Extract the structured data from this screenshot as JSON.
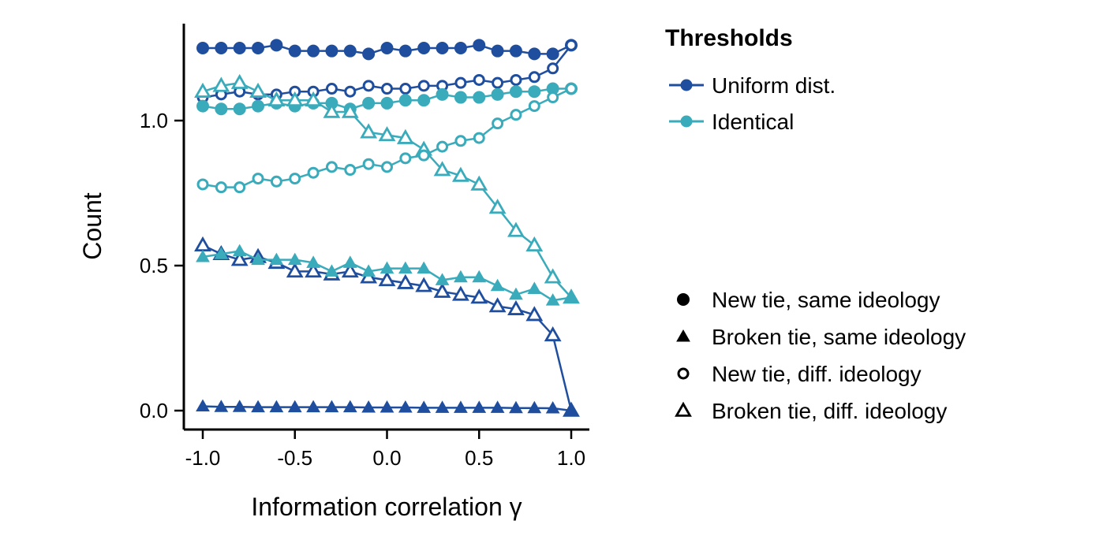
{
  "chart_data": {
    "type": "line",
    "xlabel": "Information correlation γ",
    "ylabel": "Count",
    "xlim": [
      -1.1,
      1.1
    ],
    "ylim": [
      -0.06,
      1.32
    ],
    "xticks": [
      -1.0,
      -0.5,
      0.0,
      0.5,
      1.0
    ],
    "xtick_labels": [
      "-1.0",
      "-0.5",
      "0.0",
      "0.5",
      "1.0"
    ],
    "yticks": [
      0.0,
      0.5,
      1.0
    ],
    "ytick_labels": [
      "0.0",
      "0.5",
      "1.0"
    ],
    "grid": false,
    "x": [
      -1.0,
      -0.9,
      -0.8,
      -0.7,
      -0.6,
      -0.5,
      -0.4,
      -0.3,
      -0.2,
      -0.1,
      0.0,
      0.1,
      0.2,
      0.3,
      0.4,
      0.5,
      0.6,
      0.7,
      0.8,
      0.9,
      1.0
    ],
    "color_legend": {
      "title": "Thresholds",
      "placement": "top-right",
      "entries": [
        {
          "label": "Uniform dist.",
          "color": "#1f4e9e"
        },
        {
          "label": "Identical",
          "color": "#3aabbb"
        }
      ]
    },
    "shape_legend": {
      "placement": "right",
      "entries": [
        {
          "label": "New tie, same ideology",
          "marker": "filled-circle"
        },
        {
          "label": "Broken tie, same ideology",
          "marker": "filled-triangle"
        },
        {
          "label": "New tie, diff. ideology",
          "marker": "open-circle"
        },
        {
          "label": "Broken tie, diff. ideology",
          "marker": "open-triangle"
        }
      ]
    },
    "series": [
      {
        "threshold": "Uniform dist.",
        "type": "New tie, same ideology",
        "color": "#1f4e9e",
        "marker": "filled-circle",
        "values": [
          1.25,
          1.25,
          1.25,
          1.25,
          1.26,
          1.24,
          1.24,
          1.24,
          1.24,
          1.23,
          1.25,
          1.24,
          1.25,
          1.25,
          1.25,
          1.26,
          1.24,
          1.24,
          1.23,
          1.23,
          1.26
        ]
      },
      {
        "threshold": "Uniform dist.",
        "type": "New tie, diff. ideology",
        "color": "#1f4e9e",
        "marker": "open-circle",
        "values": [
          1.08,
          1.09,
          1.1,
          1.09,
          1.09,
          1.1,
          1.1,
          1.11,
          1.1,
          1.12,
          1.11,
          1.11,
          1.12,
          1.12,
          1.13,
          1.14,
          1.13,
          1.14,
          1.15,
          1.18,
          1.26
        ]
      },
      {
        "threshold": "Uniform dist.",
        "type": "Broken tie, diff. ideology",
        "color": "#1f4e9e",
        "marker": "open-triangle",
        "values": [
          0.57,
          0.54,
          0.52,
          0.53,
          0.51,
          0.48,
          0.48,
          0.47,
          0.48,
          0.46,
          0.45,
          0.44,
          0.43,
          0.41,
          0.4,
          0.39,
          0.36,
          0.35,
          0.33,
          0.26,
          0.0
        ]
      },
      {
        "threshold": "Uniform dist.",
        "type": "Broken tie, same ideology",
        "color": "#1f4e9e",
        "marker": "filled-triangle",
        "values": [
          0.015,
          0.013,
          0.013,
          0.012,
          0.012,
          0.012,
          0.012,
          0.012,
          0.012,
          0.011,
          0.011,
          0.011,
          0.01,
          0.01,
          0.01,
          0.01,
          0.01,
          0.009,
          0.009,
          0.008,
          0.0
        ]
      },
      {
        "threshold": "Identical",
        "type": "New tie, same ideology",
        "color": "#3aabbb",
        "marker": "filled-circle",
        "values": [
          1.05,
          1.04,
          1.04,
          1.05,
          1.06,
          1.05,
          1.06,
          1.06,
          1.04,
          1.06,
          1.06,
          1.07,
          1.07,
          1.09,
          1.08,
          1.08,
          1.09,
          1.1,
          1.1,
          1.11,
          1.11
        ]
      },
      {
        "threshold": "Identical",
        "type": "Broken tie, diff. ideology",
        "color": "#3aabbb",
        "marker": "open-triangle",
        "values": [
          1.1,
          1.12,
          1.13,
          1.1,
          1.07,
          1.07,
          1.07,
          1.03,
          1.03,
          0.96,
          0.95,
          0.94,
          0.9,
          0.83,
          0.81,
          0.78,
          0.7,
          0.62,
          0.57,
          0.46,
          0.39
        ]
      },
      {
        "threshold": "Identical",
        "type": "New tie, diff. ideology",
        "color": "#3aabbb",
        "marker": "open-circle",
        "values": [
          0.78,
          0.77,
          0.77,
          0.8,
          0.79,
          0.8,
          0.82,
          0.84,
          0.83,
          0.85,
          0.84,
          0.87,
          0.88,
          0.91,
          0.93,
          0.94,
          0.99,
          1.02,
          1.05,
          1.08,
          1.11
        ]
      },
      {
        "threshold": "Identical",
        "type": "Broken tie, same ideology",
        "color": "#3aabbb",
        "marker": "filled-triangle",
        "values": [
          0.53,
          0.54,
          0.55,
          0.52,
          0.52,
          0.52,
          0.51,
          0.48,
          0.51,
          0.48,
          0.49,
          0.49,
          0.49,
          0.45,
          0.46,
          0.46,
          0.43,
          0.4,
          0.42,
          0.38,
          0.39
        ]
      }
    ]
  }
}
